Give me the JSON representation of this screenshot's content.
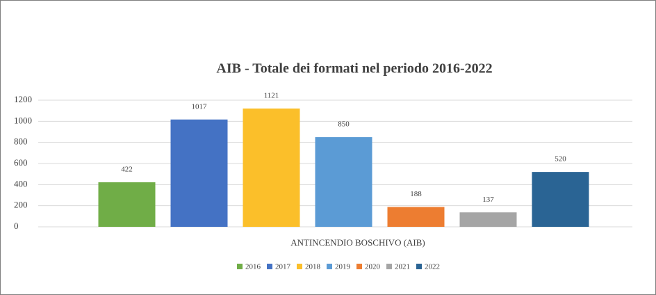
{
  "chart_data": {
    "type": "bar",
    "title": "AIB - Totale dei formati nel periodo 2016-2022",
    "categories": [
      "ANTINCENDIO BOSCHIVO (AIB)"
    ],
    "series": [
      {
        "name": "2016",
        "color": "#70ad47",
        "values": [
          422
        ]
      },
      {
        "name": "2017",
        "color": "#4472c4",
        "values": [
          1017
        ]
      },
      {
        "name": "2018",
        "color": "#fbbf2a",
        "values": [
          1121
        ]
      },
      {
        "name": "2019",
        "color": "#5b9bd5",
        "values": [
          850
        ]
      },
      {
        "name": "2020",
        "color": "#ed7d31",
        "values": [
          188
        ]
      },
      {
        "name": "2021",
        "color": "#a5a5a5",
        "values": [
          137
        ]
      },
      {
        "name": "2022",
        "color": "#2a6494",
        "values": [
          520
        ]
      }
    ],
    "ylim": [
      0,
      1200
    ],
    "yticks": [
      0,
      200,
      400,
      600,
      800,
      1000,
      1200
    ],
    "grid": true,
    "legend": "bottom"
  }
}
